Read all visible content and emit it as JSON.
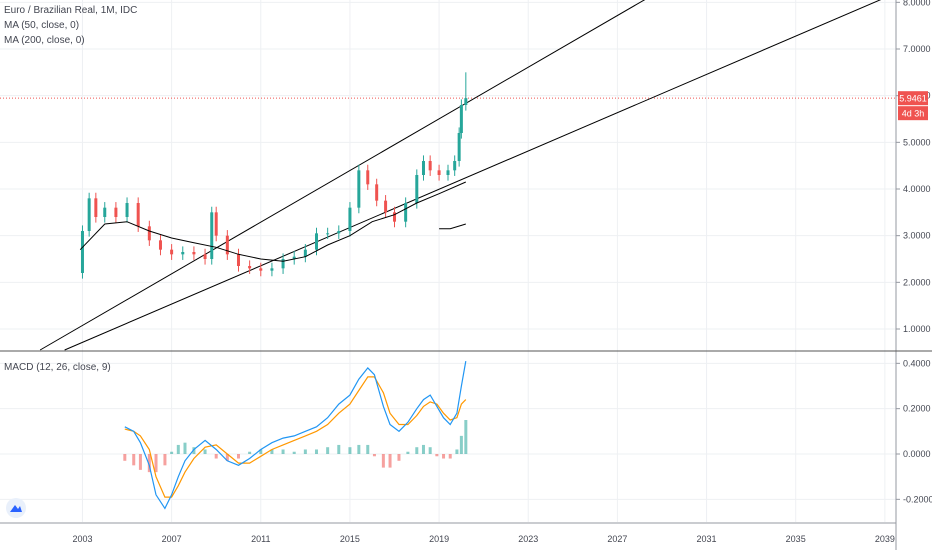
{
  "legend": {
    "symbol": "Euro / Brazilian Real, 1M, IDC",
    "ma50": "MA (50, close, 0)",
    "ma200": "MA (200, close, 0)",
    "macd": "MACD (12, 26, close, 9)"
  },
  "price_label": {
    "value": "5.9461",
    "countdown": "4d 3h"
  },
  "icons": {
    "logo": "tradingview-logo-icon"
  },
  "colors": {
    "up": "#26a69a",
    "down": "#ef5350",
    "ma": "#000000",
    "macd_line": "#2196f3",
    "signal_line": "#ff9800",
    "hist_up": "#26a69a",
    "hist_down": "#ef5350",
    "price_line": "#ef5350"
  },
  "chart_data": [
    {
      "type": "candlestick",
      "panel": "price",
      "y_ticks": [
        "1.0000",
        "2.0000",
        "3.0000",
        "4.0000",
        "5.0000",
        "6.0000",
        "7.0000",
        "8.0000"
      ],
      "ylim": [
        0.55,
        8.05
      ],
      "xlim": [
        1999.3,
        2039.5
      ],
      "close_series": {
        "x": [
          2002.8,
          2003.0,
          2003.3,
          2003.6,
          2004.0,
          2004.5,
          2005.0,
          2005.5,
          2006.0,
          2006.5,
          2007.0,
          2007.5,
          2008.0,
          2008.5,
          2008.8,
          2009.0,
          2009.5,
          2010.0,
          2010.5,
          2011.0,
          2011.5,
          2012.0,
          2012.5,
          2013.0,
          2013.5,
          2014.0,
          2014.5,
          2015.0,
          2015.4,
          2015.8,
          2016.2,
          2016.6,
          2017.0,
          2017.5,
          2018.0,
          2018.3,
          2018.6,
          2019.0,
          2019.4,
          2019.7,
          2019.9,
          2020.0,
          2020.2
        ],
        "y": [
          2.2,
          3.1,
          3.8,
          3.4,
          3.6,
          3.4,
          3.7,
          3.2,
          2.9,
          2.7,
          2.6,
          2.65,
          2.6,
          2.5,
          3.5,
          3.0,
          2.6,
          2.35,
          2.3,
          2.25,
          2.3,
          2.5,
          2.55,
          2.7,
          3.05,
          3.05,
          3.1,
          3.6,
          4.4,
          4.1,
          3.75,
          3.5,
          3.3,
          3.7,
          4.3,
          4.6,
          4.4,
          4.3,
          4.4,
          4.6,
          5.2,
          5.8,
          5.9461
        ]
      },
      "last_price": 5.9461,
      "last_high": 6.5,
      "series": [
        {
          "name": "MA (50, close, 0)",
          "x": [
            2002.9,
            2004.0,
            2005.0,
            2006.0,
            2007.0,
            2008.0,
            2009.0,
            2010.0,
            2011.0,
            2012.0,
            2013.0,
            2014.0,
            2015.0,
            2016.0,
            2017.0,
            2018.0,
            2019.0,
            2020.2
          ],
          "y": [
            2.7,
            3.25,
            3.3,
            3.1,
            2.95,
            2.85,
            2.75,
            2.6,
            2.5,
            2.45,
            2.55,
            2.8,
            3.0,
            3.3,
            3.45,
            3.7,
            3.9,
            4.15
          ]
        },
        {
          "name": "MA (200, close, 0)",
          "x": [
            2019.0,
            2019.5,
            2020.0,
            2020.2
          ],
          "y": [
            3.15,
            3.15,
            3.22,
            3.25
          ]
        }
      ],
      "trendlines": [
        {
          "x": [
            2001.1,
            2020.0
          ],
          "y": [
            0.55,
            5.78
          ]
        },
        {
          "x": [
            2002.2,
            2020.0
          ],
          "y": [
            0.55,
            4.2
          ]
        }
      ]
    },
    {
      "type": "line",
      "panel": "MACD",
      "y_ticks": [
        "-0.2000",
        "0.0000",
        "0.2000",
        "0.4000"
      ],
      "ylim": [
        -0.3,
        0.45
      ],
      "xlim": [
        1999.3,
        2039.5
      ],
      "x_ticks": [
        "2003",
        "2007",
        "2011",
        "2015",
        "2019",
        "2023",
        "2027",
        "2031",
        "2035",
        "2039"
      ],
      "series": [
        {
          "name": "MACD",
          "x": [
            2004.9,
            2005.3,
            2005.6,
            2006.0,
            2006.3,
            2006.7,
            2007.0,
            2007.3,
            2007.6,
            2008.0,
            2008.5,
            2009.0,
            2009.5,
            2010.0,
            2010.5,
            2011.0,
            2011.5,
            2012.0,
            2012.5,
            2013.0,
            2013.5,
            2014.0,
            2014.5,
            2015.0,
            2015.4,
            2015.8,
            2016.1,
            2016.5,
            2016.8,
            2017.2,
            2017.6,
            2018.0,
            2018.3,
            2018.6,
            2018.9,
            2019.2,
            2019.5,
            2019.8,
            2020.0,
            2020.2
          ],
          "y": [
            0.12,
            0.1,
            0.05,
            -0.05,
            -0.18,
            -0.24,
            -0.18,
            -0.1,
            -0.03,
            0.02,
            0.06,
            0.02,
            -0.03,
            -0.05,
            -0.02,
            0.02,
            0.05,
            0.07,
            0.08,
            0.1,
            0.12,
            0.16,
            0.22,
            0.26,
            0.33,
            0.38,
            0.35,
            0.21,
            0.13,
            0.1,
            0.14,
            0.2,
            0.24,
            0.26,
            0.21,
            0.16,
            0.13,
            0.18,
            0.3,
            0.41
          ]
        },
        {
          "name": "Signal",
          "x": [
            2004.9,
            2005.3,
            2005.6,
            2006.0,
            2006.3,
            2006.7,
            2007.0,
            2007.3,
            2007.6,
            2008.0,
            2008.5,
            2009.0,
            2009.5,
            2010.0,
            2010.5,
            2011.0,
            2011.5,
            2012.0,
            2012.5,
            2013.0,
            2013.5,
            2014.0,
            2014.5,
            2015.0,
            2015.4,
            2015.8,
            2016.1,
            2016.5,
            2016.8,
            2017.2,
            2017.6,
            2018.0,
            2018.3,
            2018.6,
            2018.9,
            2019.2,
            2019.5,
            2019.8,
            2020.0,
            2020.2
          ],
          "y": [
            0.11,
            0.1,
            0.08,
            0.02,
            -0.1,
            -0.19,
            -0.19,
            -0.14,
            -0.08,
            -0.02,
            0.03,
            0.04,
            0.0,
            -0.04,
            -0.04,
            -0.01,
            0.02,
            0.04,
            0.06,
            0.08,
            0.1,
            0.13,
            0.18,
            0.22,
            0.28,
            0.34,
            0.34,
            0.27,
            0.18,
            0.13,
            0.13,
            0.17,
            0.21,
            0.23,
            0.22,
            0.18,
            0.15,
            0.16,
            0.22,
            0.24
          ]
        },
        {
          "name": "Histogram",
          "x": [
            2004.9,
            2005.3,
            2005.6,
            2006.0,
            2006.3,
            2006.7,
            2007.0,
            2007.3,
            2007.6,
            2008.0,
            2008.5,
            2009.0,
            2009.5,
            2010.0,
            2010.5,
            2011.0,
            2011.5,
            2012.0,
            2012.5,
            2013.0,
            2013.5,
            2014.0,
            2014.5,
            2015.0,
            2015.4,
            2015.8,
            2016.1,
            2016.5,
            2016.8,
            2017.2,
            2017.6,
            2018.0,
            2018.3,
            2018.6,
            2018.9,
            2019.2,
            2019.5,
            2019.8,
            2020.0,
            2020.2
          ],
          "y": [
            -0.03,
            -0.05,
            -0.07,
            -0.08,
            -0.08,
            -0.05,
            0.01,
            0.04,
            0.05,
            0.03,
            0.02,
            -0.02,
            -0.03,
            -0.02,
            0.01,
            0.02,
            0.02,
            0.02,
            0.01,
            0.02,
            0.02,
            0.03,
            0.04,
            0.03,
            0.04,
            0.04,
            -0.01,
            -0.06,
            -0.06,
            -0.03,
            0.01,
            0.03,
            0.04,
            0.03,
            -0.01,
            -0.02,
            -0.02,
            0.02,
            0.08,
            0.15
          ]
        }
      ]
    }
  ]
}
